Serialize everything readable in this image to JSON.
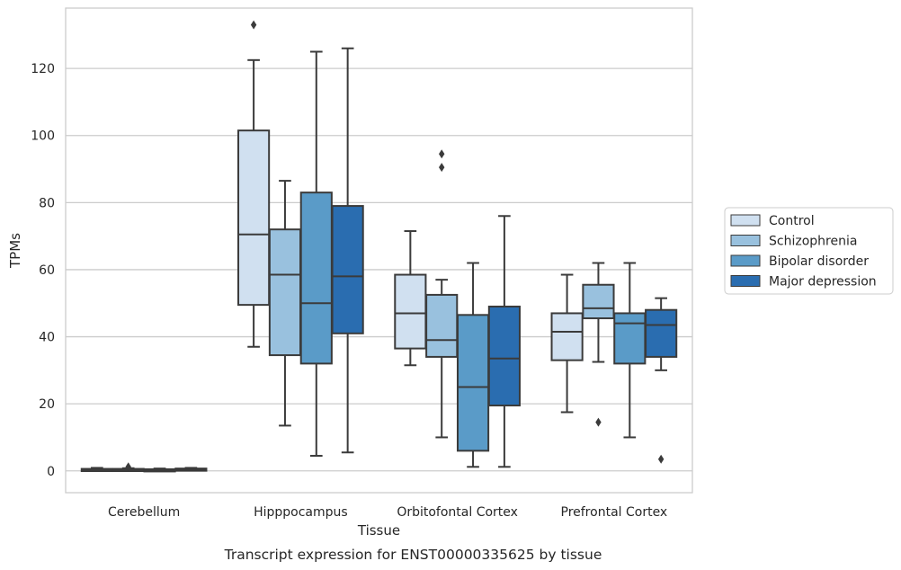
{
  "chart_data": {
    "type": "box",
    "caption": "Transcript expression for ENST00000335625 by tissue",
    "xlabel": "Tissue",
    "ylabel": "TPMs",
    "ylim": [
      -6.5,
      138
    ],
    "yticks": [
      0,
      20,
      40,
      60,
      80,
      100,
      120
    ],
    "grid": "horizontal",
    "legend_position": "right",
    "categories": [
      "Cerebellum",
      "Hipppocampus",
      "Orbitofontal Cortex",
      "Prefrontal Cortex"
    ],
    "series": [
      {
        "name": "Control",
        "color": "#d0e0f0",
        "boxes": [
          {
            "whisker_low": 0.1,
            "q1": 0.2,
            "median": 0.4,
            "q3": 0.6,
            "whisker_high": 0.9,
            "outliers": []
          },
          {
            "whisker_low": 37,
            "q1": 49.5,
            "median": 70.5,
            "q3": 101.5,
            "whisker_high": 122.5,
            "outliers": [
              133
            ]
          },
          {
            "whisker_low": 31.5,
            "q1": 36.5,
            "median": 47,
            "q3": 58.5,
            "whisker_high": 71.5,
            "outliers": []
          },
          {
            "whisker_low": 17.5,
            "q1": 33,
            "median": 41.5,
            "q3": 47,
            "whisker_high": 58.5,
            "outliers": []
          }
        ]
      },
      {
        "name": "Schizophrenia",
        "color": "#99c1de",
        "boxes": [
          {
            "whisker_low": 0.1,
            "q1": 0.2,
            "median": 0.4,
            "q3": 0.6,
            "whisker_high": 0.8,
            "outliers": [
              1.2
            ]
          },
          {
            "whisker_low": 13.5,
            "q1": 34.5,
            "median": 58.5,
            "q3": 72,
            "whisker_high": 86.5,
            "outliers": []
          },
          {
            "whisker_low": 10,
            "q1": 34,
            "median": 39,
            "q3": 52.5,
            "whisker_high": 57,
            "outliers": [
              90.5,
              94.5
            ]
          },
          {
            "whisker_low": 32.5,
            "q1": 45.5,
            "median": 48.5,
            "q3": 55.5,
            "whisker_high": 62,
            "outliers": [
              14.5
            ]
          }
        ]
      },
      {
        "name": "Bipolar disorder",
        "color": "#5a9bc8",
        "boxes": [
          {
            "whisker_low": 0.1,
            "q1": 0.2,
            "median": 0.3,
            "q3": 0.5,
            "whisker_high": 0.7,
            "outliers": []
          },
          {
            "whisker_low": 4.5,
            "q1": 32,
            "median": 50,
            "q3": 83,
            "whisker_high": 125,
            "outliers": []
          },
          {
            "whisker_low": 1.2,
            "q1": 6,
            "median": 25,
            "q3": 46.5,
            "whisker_high": 62,
            "outliers": []
          },
          {
            "whisker_low": 10,
            "q1": 32,
            "median": 44,
            "q3": 47,
            "whisker_high": 62,
            "outliers": []
          }
        ]
      },
      {
        "name": "Major depression",
        "color": "#2a6db0",
        "boxes": [
          {
            "whisker_low": 0.1,
            "q1": 0.2,
            "median": 0.4,
            "q3": 0.7,
            "whisker_high": 0.9,
            "outliers": []
          },
          {
            "whisker_low": 5.5,
            "q1": 41,
            "median": 58,
            "q3": 79,
            "whisker_high": 126,
            "outliers": []
          },
          {
            "whisker_low": 1.2,
            "q1": 19.5,
            "median": 33.5,
            "q3": 49,
            "whisker_high": 76,
            "outliers": []
          },
          {
            "whisker_low": 30,
            "q1": 34,
            "median": 43.5,
            "q3": 48,
            "whisker_high": 51.5,
            "outliers": [
              3.5
            ]
          }
        ]
      }
    ]
  }
}
